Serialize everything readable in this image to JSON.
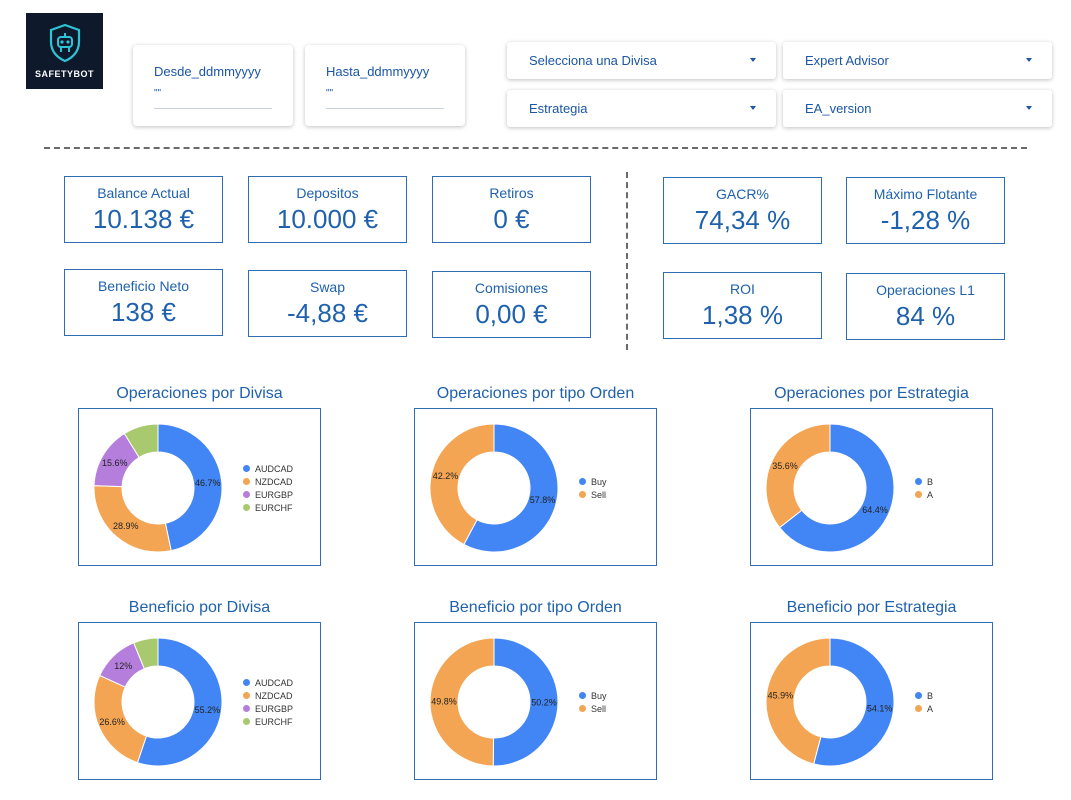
{
  "logo": {
    "text": "SAFETYBOT"
  },
  "filters": {
    "desde": {
      "label": "Desde_ddmmyyyy",
      "value": "\"\""
    },
    "hasta": {
      "label": "Hasta_ddmmyyyy",
      "value": "\"\""
    },
    "divisa": "Selecciona una Divisa",
    "expert_advisor": "Expert Advisor",
    "estrategia": "Estrategia",
    "ea_version": "EA_version"
  },
  "kpis": {
    "balance": {
      "label": "Balance Actual",
      "value": "10.138 €"
    },
    "depositos": {
      "label": "Depositos",
      "value": "10.000 €"
    },
    "retiros": {
      "label": "Retiros",
      "value": "0 €"
    },
    "beneficio": {
      "label": "Beneficio Neto",
      "value": "138 €"
    },
    "swap": {
      "label": "Swap",
      "value": "-4,88 €"
    },
    "comisiones": {
      "label": "Comisiones",
      "value": "0,00 €"
    },
    "gacr": {
      "label": "GACR%",
      "value": "74,34 %"
    },
    "max_flotante": {
      "label": "Máximo Flotante",
      "value": "-1,28 %"
    },
    "roi": {
      "label": "ROI",
      "value": "1,38 %"
    },
    "operaciones_l1": {
      "label": "Operaciones L1",
      "value": "84 %"
    }
  },
  "colors": {
    "blue": "#4285f4",
    "orange": "#f4a553",
    "purple": "#b57edc",
    "green": "#a8c96e"
  },
  "chart_data": [
    {
      "type": "pie",
      "title": "Operaciones por Divisa",
      "categories": [
        "AUDCAD",
        "NZDCAD",
        "EURGBP",
        "EURCHF"
      ],
      "values": [
        46.7,
        28.9,
        15.6,
        8.8
      ],
      "labels": [
        "46.7%",
        "28.9%",
        "15.6%",
        ""
      ],
      "colors": [
        "#4285f4",
        "#f4a553",
        "#b57edc",
        "#a8c96e"
      ]
    },
    {
      "type": "pie",
      "title": "Operaciones por tipo Orden",
      "categories": [
        "Buy",
        "Sell"
      ],
      "values": [
        57.8,
        42.2
      ],
      "labels": [
        "57.8%",
        "42.2%"
      ],
      "colors": [
        "#4285f4",
        "#f4a553"
      ]
    },
    {
      "type": "pie",
      "title": "Operaciones por Estrategia",
      "categories": [
        "B",
        "A"
      ],
      "values": [
        64.4,
        35.6
      ],
      "labels": [
        "64.4%",
        "35.6%"
      ],
      "colors": [
        "#4285f4",
        "#f4a553"
      ]
    },
    {
      "type": "pie",
      "title": "Beneficio por Divisa",
      "categories": [
        "AUDCAD",
        "NZDCAD",
        "EURGBP",
        "EURCHF"
      ],
      "values": [
        55.2,
        26.6,
        12,
        6.2
      ],
      "labels": [
        "55.2%",
        "26.6%",
        "12%",
        ""
      ],
      "colors": [
        "#4285f4",
        "#f4a553",
        "#b57edc",
        "#a8c96e"
      ]
    },
    {
      "type": "pie",
      "title": "Beneficio por tipo Orden",
      "categories": [
        "Buy",
        "Sell"
      ],
      "values": [
        50.2,
        49.8
      ],
      "labels": [
        "50.2%",
        "49.8%"
      ],
      "colors": [
        "#4285f4",
        "#f4a553"
      ]
    },
    {
      "type": "pie",
      "title": "Beneficio por Estrategia",
      "categories": [
        "B",
        "A"
      ],
      "values": [
        54.1,
        45.9
      ],
      "labels": [
        "54.1%",
        "45.9%"
      ],
      "colors": [
        "#4285f4",
        "#f4a553"
      ]
    }
  ]
}
